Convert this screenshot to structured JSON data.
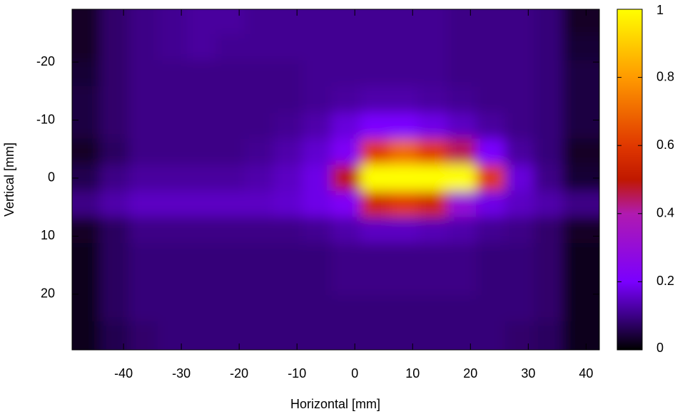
{
  "chart_data": {
    "type": "heatmap",
    "xlabel": "Horizontal [mm]",
    "ylabel": "Vertical [mm]",
    "xlim": [
      -48.9,
      42.3
    ],
    "ylim": [
      -29.1,
      29.6
    ],
    "y_inverted": true,
    "xticks": [
      -40,
      -30,
      -20,
      -10,
      0,
      10,
      20,
      30,
      40
    ],
    "yticks": [
      -20,
      -10,
      0,
      10,
      20
    ],
    "zlim": [
      0,
      1
    ],
    "zticks": [
      0,
      0.2,
      0.4,
      0.6,
      0.8,
      1
    ],
    "colorscale": [
      [
        0,
        "#000000"
      ],
      [
        0.1,
        "#3c0086"
      ],
      [
        0.2,
        "#7a00ff"
      ],
      [
        0.4,
        "#b01ab0"
      ],
      [
        0.5,
        "#c01800"
      ],
      [
        0.6,
        "#e03800"
      ],
      [
        0.8,
        "#ff9a00"
      ],
      [
        1,
        "#ffff00"
      ]
    ],
    "x": [
      -46.5,
      -41.5,
      -36.5,
      -31.5,
      -26.5,
      -21.5,
      -16.5,
      -11.5,
      -6.5,
      -1.5,
      3.5,
      8.5,
      13.5,
      18.5,
      23.5,
      28.5,
      33.5,
      38.5
    ],
    "y": [
      -27,
      -22.5,
      -18,
      -13.5,
      -9,
      -4.5,
      0,
      4.5,
      9,
      13.5,
      18,
      22.5,
      27
    ],
    "z": [
      [
        0.03,
        0.08,
        0.1,
        0.11,
        0.12,
        0.12,
        0.11,
        0.11,
        0.11,
        0.11,
        0.11,
        0.11,
        0.11,
        0.1,
        0.1,
        0.1,
        0.09,
        0.03
      ],
      [
        0.03,
        0.08,
        0.1,
        0.11,
        0.12,
        0.11,
        0.11,
        0.11,
        0.11,
        0.11,
        0.11,
        0.11,
        0.11,
        0.1,
        0.1,
        0.1,
        0.09,
        0.04
      ],
      [
        0.04,
        0.08,
        0.1,
        0.1,
        0.1,
        0.1,
        0.1,
        0.1,
        0.11,
        0.11,
        0.11,
        0.11,
        0.11,
        0.1,
        0.1,
        0.1,
        0.09,
        0.05
      ],
      [
        0.05,
        0.08,
        0.1,
        0.1,
        0.1,
        0.1,
        0.1,
        0.1,
        0.11,
        0.12,
        0.13,
        0.13,
        0.12,
        0.11,
        0.1,
        0.1,
        0.09,
        0.05
      ],
      [
        0.05,
        0.08,
        0.1,
        0.1,
        0.1,
        0.1,
        0.1,
        0.11,
        0.13,
        0.17,
        0.2,
        0.2,
        0.18,
        0.15,
        0.12,
        0.1,
        0.09,
        0.05
      ],
      [
        0.03,
        0.07,
        0.1,
        0.1,
        0.1,
        0.1,
        0.11,
        0.13,
        0.16,
        0.22,
        0.6,
        0.7,
        0.6,
        0.45,
        0.2,
        0.12,
        0.09,
        0.03
      ],
      [
        0.06,
        0.1,
        0.12,
        0.12,
        0.12,
        0.12,
        0.13,
        0.15,
        0.18,
        0.5,
        1,
        1,
        1,
        1,
        0.6,
        0.17,
        0.1,
        0.04
      ],
      [
        0.1,
        0.13,
        0.15,
        0.15,
        0.15,
        0.15,
        0.15,
        0.16,
        0.18,
        0.22,
        0.55,
        0.6,
        0.55,
        0.3,
        0.18,
        0.15,
        0.13,
        0.1
      ],
      [
        0.03,
        0.07,
        0.1,
        0.1,
        0.1,
        0.1,
        0.1,
        0.1,
        0.11,
        0.13,
        0.15,
        0.15,
        0.14,
        0.13,
        0.11,
        0.1,
        0.08,
        0.03
      ],
      [
        0.02,
        0.07,
        0.09,
        0.09,
        0.09,
        0.09,
        0.09,
        0.09,
        0.09,
        0.1,
        0.1,
        0.1,
        0.1,
        0.1,
        0.09,
        0.09,
        0.08,
        0.02
      ],
      [
        0.02,
        0.07,
        0.09,
        0.09,
        0.09,
        0.09,
        0.09,
        0.09,
        0.09,
        0.1,
        0.1,
        0.1,
        0.1,
        0.1,
        0.09,
        0.09,
        0.08,
        0.02
      ],
      [
        0.02,
        0.07,
        0.09,
        0.09,
        0.09,
        0.09,
        0.09,
        0.09,
        0.09,
        0.09,
        0.09,
        0.09,
        0.09,
        0.09,
        0.09,
        0.09,
        0.08,
        0.02
      ],
      [
        0.02,
        0.06,
        0.08,
        0.09,
        0.09,
        0.09,
        0.09,
        0.09,
        0.09,
        0.09,
        0.09,
        0.09,
        0.09,
        0.09,
        0.09,
        0.08,
        0.07,
        0.02
      ]
    ]
  }
}
